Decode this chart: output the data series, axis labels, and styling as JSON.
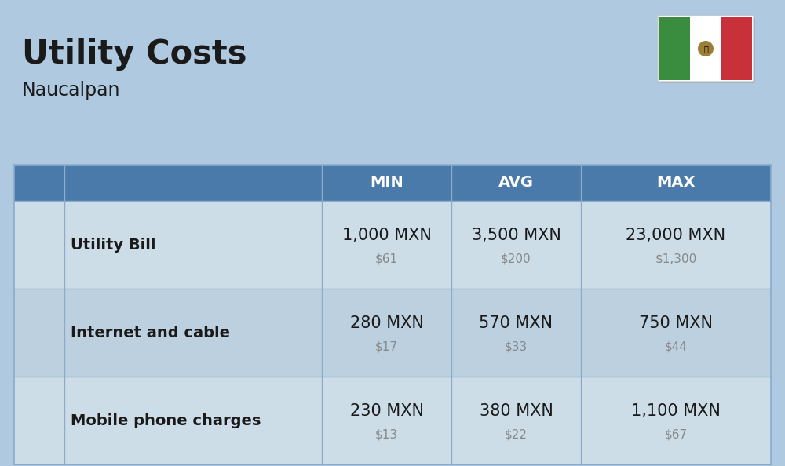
{
  "title": "Utility Costs",
  "subtitle": "Naucalpan",
  "background_color": "#aec9e0",
  "header_bg_color": "#4a7aaa",
  "header_text_color": "#ffffff",
  "row_bg_color_even": "#ccdde8",
  "row_bg_color_odd": "#bcd0e0",
  "col_header_labels": [
    "MIN",
    "AVG",
    "MAX"
  ],
  "rows": [
    {
      "label": "Utility Bill",
      "min_mxn": "1,000 MXN",
      "min_usd": "$61",
      "avg_mxn": "3,500 MXN",
      "avg_usd": "$200",
      "max_mxn": "23,000 MXN",
      "max_usd": "$1,300"
    },
    {
      "label": "Internet and cable",
      "min_mxn": "280 MXN",
      "min_usd": "$17",
      "avg_mxn": "570 MXN",
      "avg_usd": "$33",
      "max_mxn": "750 MXN",
      "max_usd": "$44"
    },
    {
      "label": "Mobile phone charges",
      "min_mxn": "230 MXN",
      "min_usd": "$13",
      "avg_mxn": "380 MXN",
      "avg_usd": "$22",
      "max_mxn": "1,100 MXN",
      "max_usd": "$67"
    }
  ],
  "title_fontsize": 30,
  "subtitle_fontsize": 17,
  "header_fontsize": 14,
  "label_fontsize": 14,
  "value_fontsize": 15,
  "subvalue_fontsize": 11,
  "flag_green": "#3a8c3f",
  "flag_white": "#ffffff",
  "flag_red": "#c8303a",
  "border_color": "#8aabcc",
  "divider_color": "#8aabcc"
}
